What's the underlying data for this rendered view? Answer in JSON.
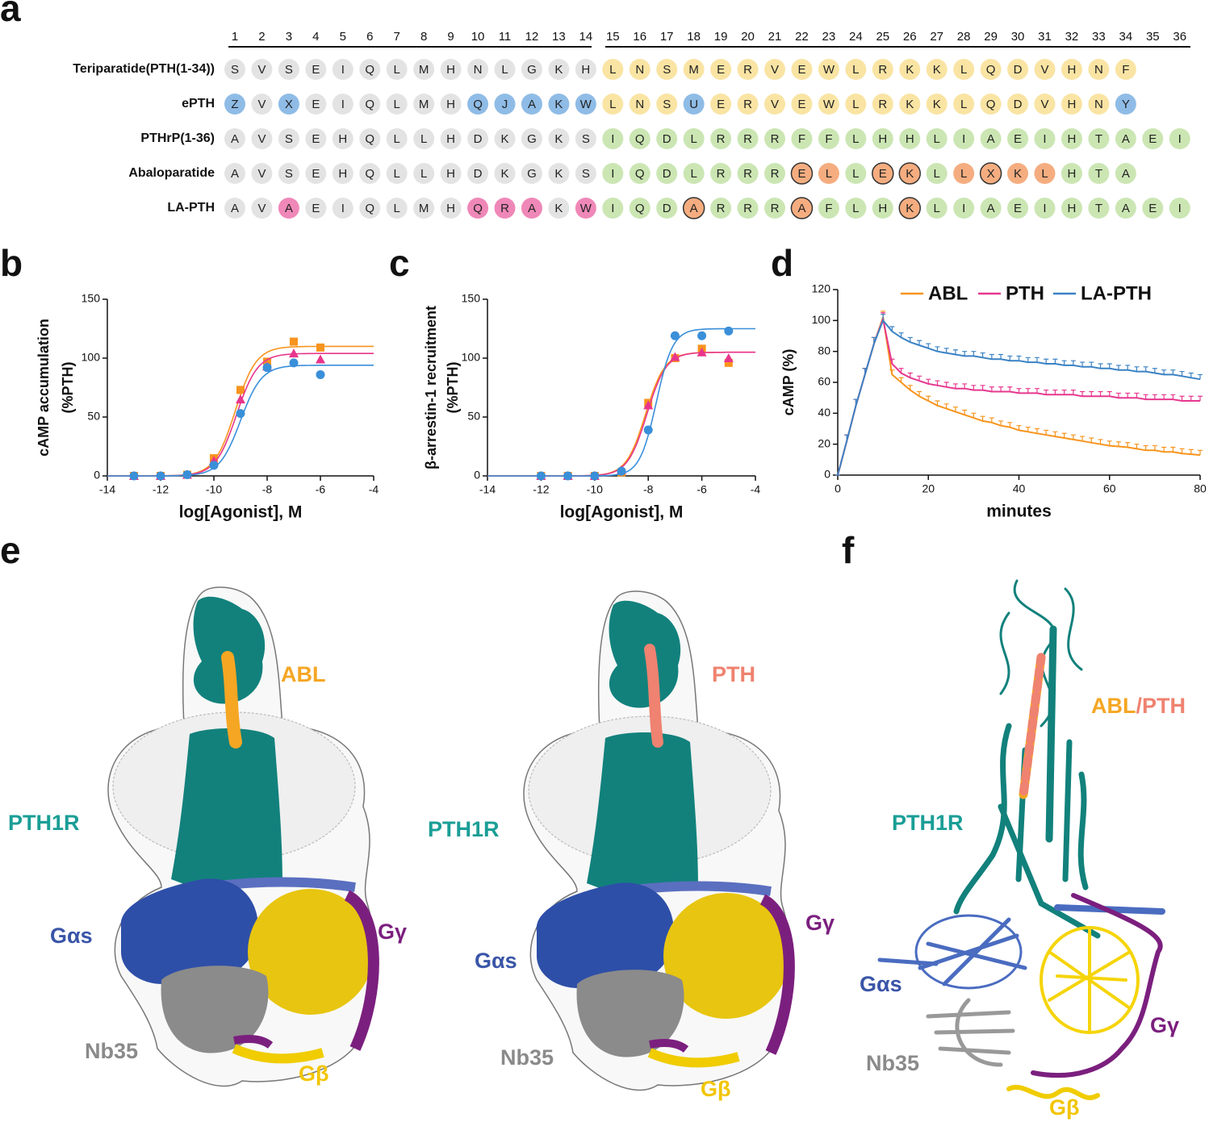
{
  "panel_a": {
    "panel_label": "a",
    "positions": [
      1,
      2,
      3,
      4,
      5,
      6,
      7,
      8,
      9,
      10,
      11,
      12,
      13,
      14,
      15,
      16,
      17,
      18,
      19,
      20,
      21,
      22,
      23,
      24,
      25,
      26,
      27,
      28,
      29,
      30,
      31,
      32,
      33,
      34,
      35,
      36
    ],
    "palette": {
      "g": "#e3e3e3",
      "y": "#f9e4a3",
      "b": "#8fbce6",
      "p": "#ef88b8",
      "G": "#cbe6b3",
      "o": "#f5ad80",
      "O": "#f5ad80"
    },
    "outlined": [
      "O"
    ],
    "rows": [
      {
        "name": "Teriparatide(PTH(1-34))",
        "residues": [
          "S",
          "V",
          "S",
          "E",
          "I",
          "Q",
          "L",
          "M",
          "H",
          "N",
          "L",
          "G",
          "K",
          "H",
          "L",
          "N",
          "S",
          "M",
          "E",
          "R",
          "V",
          "E",
          "W",
          "L",
          "R",
          "K",
          "K",
          "L",
          "Q",
          "D",
          "V",
          "H",
          "N",
          "F"
        ],
        "styles": [
          "g",
          "g",
          "g",
          "g",
          "g",
          "g",
          "g",
          "g",
          "g",
          "g",
          "g",
          "g",
          "g",
          "g",
          "y",
          "y",
          "y",
          "y",
          "y",
          "y",
          "y",
          "y",
          "y",
          "y",
          "y",
          "y",
          "y",
          "y",
          "y",
          "y",
          "y",
          "y",
          "y",
          "y"
        ]
      },
      {
        "name": "ePTH",
        "residues": [
          "Z",
          "V",
          "X",
          "E",
          "I",
          "Q",
          "L",
          "M",
          "H",
          "Q",
          "J",
          "A",
          "K",
          "W",
          "L",
          "N",
          "S",
          "U",
          "E",
          "R",
          "V",
          "E",
          "W",
          "L",
          "R",
          "K",
          "K",
          "L",
          "Q",
          "D",
          "V",
          "H",
          "N",
          "Y"
        ],
        "styles": [
          "b",
          "g",
          "b",
          "g",
          "g",
          "g",
          "g",
          "g",
          "g",
          "b",
          "b",
          "b",
          "b",
          "b",
          "y",
          "y",
          "y",
          "b",
          "y",
          "y",
          "y",
          "y",
          "y",
          "y",
          "y",
          "y",
          "y",
          "y",
          "y",
          "y",
          "y",
          "y",
          "y",
          "b"
        ]
      },
      {
        "name": "PTHrP(1-36)",
        "residues": [
          "A",
          "V",
          "S",
          "E",
          "H",
          "Q",
          "L",
          "L",
          "H",
          "D",
          "K",
          "G",
          "K",
          "S",
          "I",
          "Q",
          "D",
          "L",
          "R",
          "R",
          "R",
          "F",
          "F",
          "L",
          "H",
          "H",
          "L",
          "I",
          "A",
          "E",
          "I",
          "H",
          "T",
          "A",
          "E",
          "I"
        ],
        "styles": [
          "g",
          "g",
          "g",
          "g",
          "g",
          "g",
          "g",
          "g",
          "g",
          "g",
          "g",
          "g",
          "g",
          "g",
          "G",
          "G",
          "G",
          "G",
          "G",
          "G",
          "G",
          "G",
          "G",
          "G",
          "G",
          "G",
          "G",
          "G",
          "G",
          "G",
          "G",
          "G",
          "G",
          "G",
          "G",
          "G"
        ]
      },
      {
        "name": "Abaloparatide",
        "residues": [
          "A",
          "V",
          "S",
          "E",
          "H",
          "Q",
          "L",
          "L",
          "H",
          "D",
          "K",
          "G",
          "K",
          "S",
          "I",
          "Q",
          "D",
          "L",
          "R",
          "R",
          "R",
          "E",
          "L",
          "L",
          "E",
          "K",
          "L",
          "L",
          "X",
          "K",
          "L",
          "H",
          "T",
          "A"
        ],
        "styles": [
          "g",
          "g",
          "g",
          "g",
          "g",
          "g",
          "g",
          "g",
          "g",
          "g",
          "g",
          "g",
          "g",
          "g",
          "G",
          "G",
          "G",
          "G",
          "G",
          "G",
          "G",
          "O",
          "o",
          "G",
          "O",
          "O",
          "G",
          "o",
          "O",
          "o",
          "o",
          "G",
          "G",
          "G"
        ]
      },
      {
        "name": "LA-PTH",
        "residues": [
          "A",
          "V",
          "A",
          "E",
          "I",
          "Q",
          "L",
          "M",
          "H",
          "Q",
          "R",
          "A",
          "K",
          "W",
          "I",
          "Q",
          "D",
          "A",
          "R",
          "R",
          "R",
          "A",
          "F",
          "L",
          "H",
          "K",
          "L",
          "I",
          "A",
          "E",
          "I",
          "H",
          "T",
          "A",
          "E",
          "I"
        ],
        "styles": [
          "g",
          "g",
          "p",
          "g",
          "g",
          "g",
          "g",
          "g",
          "g",
          "p",
          "p",
          "p",
          "g",
          "p",
          "G",
          "G",
          "G",
          "O",
          "G",
          "G",
          "G",
          "O",
          "G",
          "G",
          "G",
          "O",
          "G",
          "G",
          "G",
          "G",
          "G",
          "G",
          "G",
          "G",
          "G",
          "G"
        ]
      }
    ]
  },
  "chart_data": [
    {
      "type": "scatter",
      "panel_label": "b",
      "ylabel": [
        "cAMP accumulation",
        "(%PTH)"
      ],
      "xlabel": "log[Agonist], M",
      "xlim": [
        -14,
        -4
      ],
      "xticks": [
        -14,
        -12,
        -10,
        -8,
        -6,
        -4
      ],
      "ylim": [
        0,
        150
      ],
      "yticks": [
        0,
        50,
        100,
        150
      ],
      "series": [
        {
          "color": "#f7941d",
          "marker": "square",
          "x": [
            -13,
            -12,
            -11,
            -10,
            -9,
            -8,
            -7,
            -6
          ],
          "values": [
            0,
            0,
            1,
            15,
            73,
            97,
            114,
            109
          ],
          "fit": {
            "bottom": 0,
            "top": 110,
            "log_ec50": -9.2,
            "hill": 1.1
          }
        },
        {
          "color": "#e8358c",
          "marker": "triangle",
          "x": [
            -13,
            -12,
            -11,
            -10,
            -9,
            -8,
            -7,
            -6
          ],
          "values": [
            0,
            0,
            1,
            13,
            65,
            93,
            104,
            99
          ],
          "fit": {
            "bottom": 0,
            "top": 104,
            "log_ec50": -9.15,
            "hill": 1.1
          }
        },
        {
          "color": "#3a8fd9",
          "marker": "circle",
          "x": [
            -13,
            -12,
            -11,
            -10,
            -9,
            -8,
            -7,
            -6
          ],
          "values": [
            0,
            0,
            1,
            9,
            53,
            92,
            96,
            86
          ],
          "fit": {
            "bottom": 0,
            "top": 94,
            "log_ec50": -9.0,
            "hill": 1.1
          }
        }
      ]
    },
    {
      "type": "scatter",
      "panel_label": "c",
      "ylabel": [
        "β-arrestin-1 recruitment",
        "(%PTH)"
      ],
      "xlabel": "log[Agonist], M",
      "xlim": [
        -14,
        -4
      ],
      "xticks": [
        -14,
        -12,
        -10,
        -8,
        -6,
        -4
      ],
      "ylim": [
        0,
        150
      ],
      "yticks": [
        0,
        50,
        100,
        150
      ],
      "series": [
        {
          "color": "#f7941d",
          "marker": "square",
          "x": [
            -12,
            -11,
            -10,
            -9,
            -8,
            -7,
            -6,
            -5
          ],
          "values": [
            0,
            0,
            0,
            3,
            62,
            100,
            108,
            96
          ],
          "fit": {
            "bottom": 0,
            "top": 105,
            "log_ec50": -8.1,
            "hill": 1.2
          }
        },
        {
          "color": "#e8358c",
          "marker": "triangle",
          "x": [
            -12,
            -11,
            -10,
            -9,
            -8,
            -7,
            -6,
            -5
          ],
          "values": [
            0,
            0,
            0,
            5,
            60,
            101,
            105,
            100
          ],
          "fit": {
            "bottom": 0,
            "top": 105,
            "log_ec50": -8.05,
            "hill": 1.2
          }
        },
        {
          "color": "#3a8fd9",
          "marker": "circle",
          "x": [
            -12,
            -11,
            -10,
            -9,
            -8,
            -7,
            -6,
            -5
          ],
          "values": [
            0,
            0,
            0,
            4,
            39,
            119,
            119,
            123
          ],
          "fit": {
            "bottom": 0,
            "top": 125,
            "log_ec50": -7.7,
            "hill": 1.4
          }
        }
      ]
    },
    {
      "type": "line",
      "panel_label": "d",
      "ylabel": "cAMP (%)",
      "xlabel": "minutes",
      "legend": "top",
      "xlim": [
        0,
        80
      ],
      "xticks": [
        0,
        20,
        40,
        60,
        80
      ],
      "ylim": [
        0,
        120
      ],
      "yticks": [
        0,
        20,
        40,
        60,
        80,
        100,
        120
      ],
      "x": [
        0,
        2,
        4,
        6,
        8,
        10,
        12,
        14,
        16,
        18,
        20,
        22,
        24,
        26,
        28,
        30,
        32,
        34,
        36,
        38,
        40,
        42,
        44,
        46,
        48,
        50,
        52,
        54,
        56,
        58,
        60,
        62,
        64,
        66,
        68,
        70,
        72,
        74,
        76,
        78,
        80
      ],
      "series": [
        {
          "name": "ABL",
          "color": "#f7941d",
          "values": [
            0,
            22,
            45,
            65,
            85,
            102,
            65,
            60,
            55,
            51,
            48,
            45,
            43,
            41,
            39,
            37,
            35,
            34,
            32,
            31,
            29,
            28,
            27,
            26,
            25,
            24,
            23,
            22,
            21,
            20,
            19,
            18.5,
            18,
            17,
            16,
            16,
            15,
            15,
            14,
            13.5,
            13
          ],
          "errors": [
            0,
            4,
            4,
            4,
            4,
            4,
            3,
            3,
            3,
            3,
            3,
            3,
            3,
            3,
            3,
            3,
            3,
            3,
            3,
            3,
            3,
            3,
            3,
            3,
            3,
            3,
            3,
            3,
            3,
            3,
            3,
            3,
            3,
            3,
            3,
            3,
            3,
            3,
            3,
            3,
            3
          ]
        },
        {
          "name": "PTH",
          "color": "#e6388f",
          "values": [
            0,
            22,
            45,
            65,
            85,
            101,
            72,
            66,
            63,
            61,
            59,
            58,
            57,
            56,
            56,
            55,
            55,
            54,
            54,
            54,
            53,
            53,
            53,
            52,
            52,
            52,
            52,
            51,
            51,
            51,
            51,
            50,
            50,
            50,
            49,
            49,
            49,
            49,
            48,
            48,
            48
          ],
          "errors": [
            0,
            4,
            4,
            4,
            4,
            4,
            3,
            3,
            3,
            3,
            3,
            3,
            3,
            3,
            3,
            3,
            3,
            3,
            3,
            3,
            3,
            3,
            3,
            3,
            3,
            3,
            3,
            3,
            3,
            3,
            3,
            3,
            3,
            3,
            3,
            3,
            3,
            3,
            3,
            3,
            3
          ]
        },
        {
          "name": "LA-PTH",
          "color": "#3b82c4",
          "values": [
            0,
            22,
            45,
            65,
            85,
            100,
            93,
            89,
            86,
            84,
            82,
            80,
            79,
            78,
            77,
            77,
            76,
            75,
            75,
            74,
            74,
            73,
            73,
            72,
            72,
            71,
            71,
            70,
            70,
            69,
            69,
            68,
            68,
            67,
            67,
            66,
            65,
            65,
            64,
            63,
            62
          ],
          "errors": [
            0,
            4,
            4,
            4,
            4,
            4,
            3,
            3,
            3,
            3,
            3,
            3,
            3,
            3,
            3,
            3,
            3,
            3,
            3,
            3,
            3,
            3,
            3,
            3,
            3,
            3,
            3,
            3,
            3,
            3,
            3,
            3,
            3,
            3,
            3,
            3,
            3,
            3,
            3,
            3,
            3
          ]
        }
      ]
    }
  ],
  "panel_e": {
    "panel_label": "e",
    "maps": [
      {
        "labels": [
          {
            "text": "ABL",
            "color": "#f5a623"
          },
          {
            "text": "PTH1R",
            "color": "#1a9e96"
          },
          {
            "text": "Gαs",
            "color": "#3a55a8"
          },
          {
            "text": "Gγ",
            "color": "#7b1f7e"
          },
          {
            "text": "Nb35",
            "color": "#8a8a8a"
          },
          {
            "text": "Gβ",
            "color": "#f2c500"
          }
        ]
      },
      {
        "labels": [
          {
            "text": "PTH",
            "color": "#ef8270"
          },
          {
            "text": "PTH1R",
            "color": "#1a9e96"
          },
          {
            "text": "Gαs",
            "color": "#3a55a8"
          },
          {
            "text": "Gγ",
            "color": "#7b1f7e"
          },
          {
            "text": "Nb35",
            "color": "#8a8a8a"
          },
          {
            "text": "Gβ",
            "color": "#f2c500"
          }
        ]
      }
    ]
  },
  "panel_f": {
    "panel_label": "f",
    "peptide_label": [
      {
        "text": "ABL",
        "color": "#f5a623"
      },
      {
        "text": "/PTH",
        "color": "#ef8270"
      }
    ],
    "labels": [
      {
        "text": "PTH1R",
        "color": "#1a9e96"
      },
      {
        "text": "Gαs",
        "color": "#3a55a8"
      },
      {
        "text": "Gγ",
        "color": "#7b1f7e"
      },
      {
        "text": "Nb35",
        "color": "#8a8a8a"
      },
      {
        "text": "Gβ",
        "color": "#f2c500"
      }
    ]
  }
}
